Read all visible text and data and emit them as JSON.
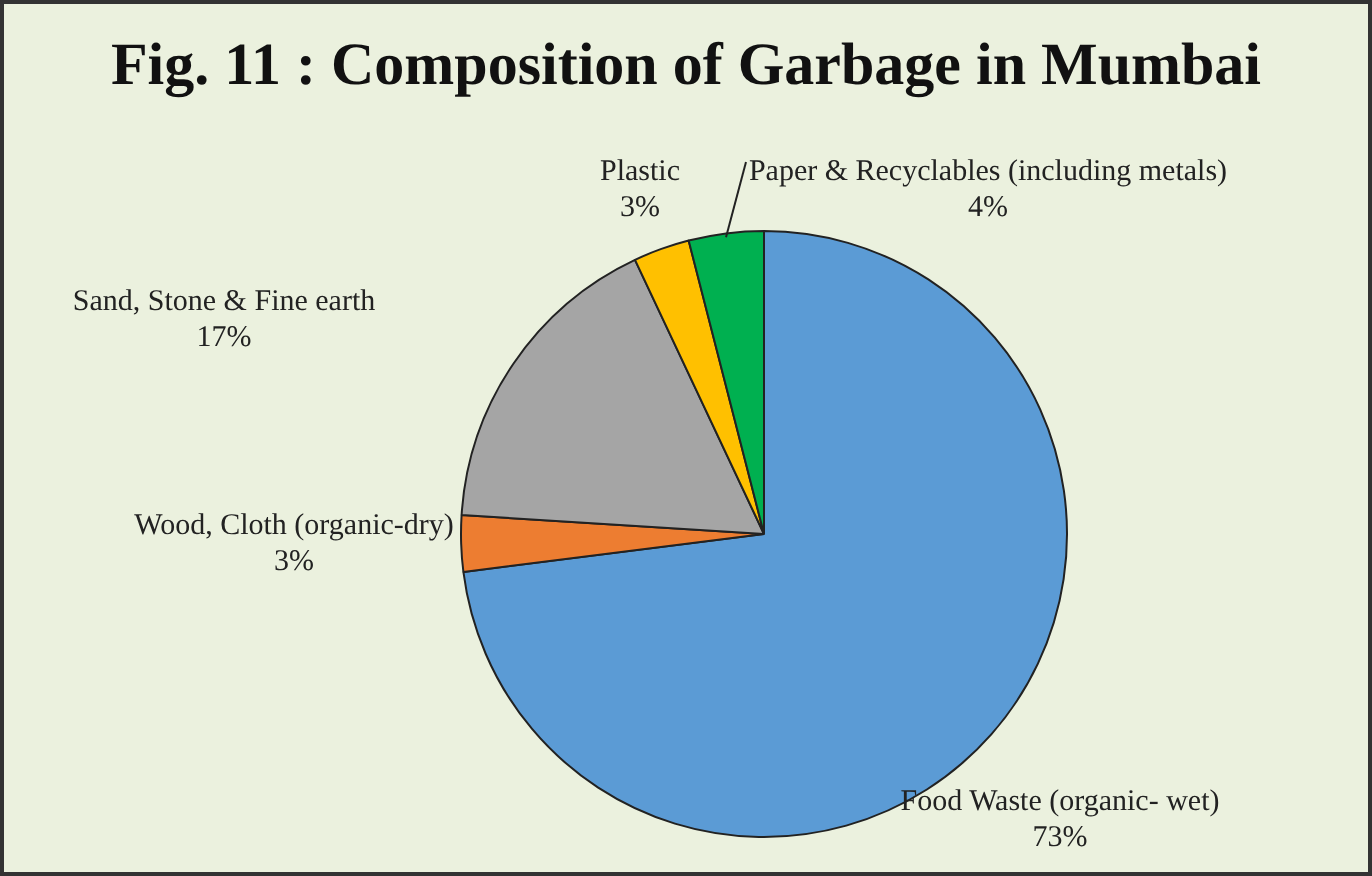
{
  "chart_data": {
    "type": "pie",
    "title": "Fig. 11 : Composition of Garbage in Mumbai",
    "categories": [
      "Food Waste (organic- wet)",
      "Wood, Cloth (organic-dry)",
      "Sand, Stone & Fine earth",
      "Plastic",
      "Paper & Recyclables (including metals)"
    ],
    "values": [
      73,
      3,
      17,
      3,
      4
    ],
    "value_labels": [
      "73%",
      "3%",
      "17%",
      "3%",
      "4%"
    ],
    "colors": [
      "#5b9bd5",
      "#ed7d31",
      "#a5a5a5",
      "#ffc000",
      "#00b050"
    ],
    "legend": false
  }
}
